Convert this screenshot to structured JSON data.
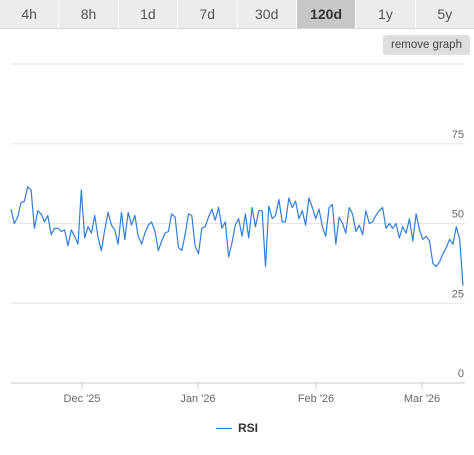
{
  "tabs": [
    {
      "label": "4h",
      "active": false
    },
    {
      "label": "8h",
      "active": false
    },
    {
      "label": "1d",
      "active": false
    },
    {
      "label": "7d",
      "active": false
    },
    {
      "label": "30d",
      "active": false
    },
    {
      "label": "120d",
      "active": true
    },
    {
      "label": "1y",
      "active": false
    },
    {
      "label": "5y",
      "active": false
    }
  ],
  "remove_graph_label": "remove graph",
  "colors": {
    "series": "#2f7ed8",
    "grid": "#e6e6e6",
    "active_tab": "#c7c7c7",
    "tab": "#ececec"
  },
  "chart_data": {
    "type": "line",
    "title": "",
    "xlabel": "",
    "ylabel": "",
    "ylim": [
      0,
      100
    ],
    "y_ticks": [
      0,
      25,
      50,
      75
    ],
    "y_tick_labels": [
      "0",
      "25",
      "50",
      "75"
    ],
    "y_axis_side": "right",
    "x_tick_labels": [
      "Dec '25",
      "Jan '26",
      "Feb '26",
      "Mar '26"
    ],
    "grid": true,
    "legend_position": "bottom",
    "series": [
      {
        "name": "RSI",
        "values": [
          54.5,
          50.0,
          52.0,
          56.5,
          57.0,
          61.5,
          60.5,
          48.5,
          54.0,
          53.0,
          50.5,
          52.5,
          46.5,
          48.5,
          48.5,
          47.5,
          48.0,
          43.0,
          48.0,
          46.0,
          43.5,
          60.5,
          45.5,
          49.0,
          47.0,
          52.5,
          45.5,
          41.5,
          48.0,
          53.5,
          49.5,
          48.0,
          43.5,
          53.5,
          45.0,
          53.5,
          49.5,
          52.5,
          46.0,
          43.5,
          47.0,
          49.5,
          50.5,
          47.5,
          41.5,
          44.5,
          47.0,
          47.5,
          53.0,
          52.0,
          42.5,
          41.5,
          46.5,
          53.0,
          52.5,
          43.0,
          40.5,
          48.5,
          49.0,
          52.0,
          54.5,
          51.0,
          55.0,
          48.5,
          50.5,
          39.5,
          44.0,
          49.5,
          51.5,
          46.0,
          53.0,
          45.5,
          55.0,
          49.0,
          54.0,
          54.0,
          36.5,
          55.5,
          51.5,
          52.5,
          57.5,
          50.5,
          50.5,
          58.0,
          55.0,
          57.0,
          51.5,
          54.0,
          49.5,
          58.0,
          55.0,
          51.5,
          54.5,
          49.0,
          46.0,
          55.0,
          56.0,
          43.5,
          52.0,
          50.0,
          47.0,
          55.0,
          53.0,
          47.5,
          49.5,
          46.5,
          54.0,
          50.0,
          50.5,
          52.5,
          54.0,
          55.0,
          48.5,
          50.0,
          48.5,
          50.0,
          45.5,
          49.0,
          47.0,
          51.5,
          44.5,
          53.0,
          48.0,
          45.0,
          46.0,
          44.5,
          37.5,
          36.5,
          38.0,
          40.5,
          42.5,
          45.0,
          43.5,
          49.0,
          45.0,
          30.5
        ]
      }
    ]
  }
}
